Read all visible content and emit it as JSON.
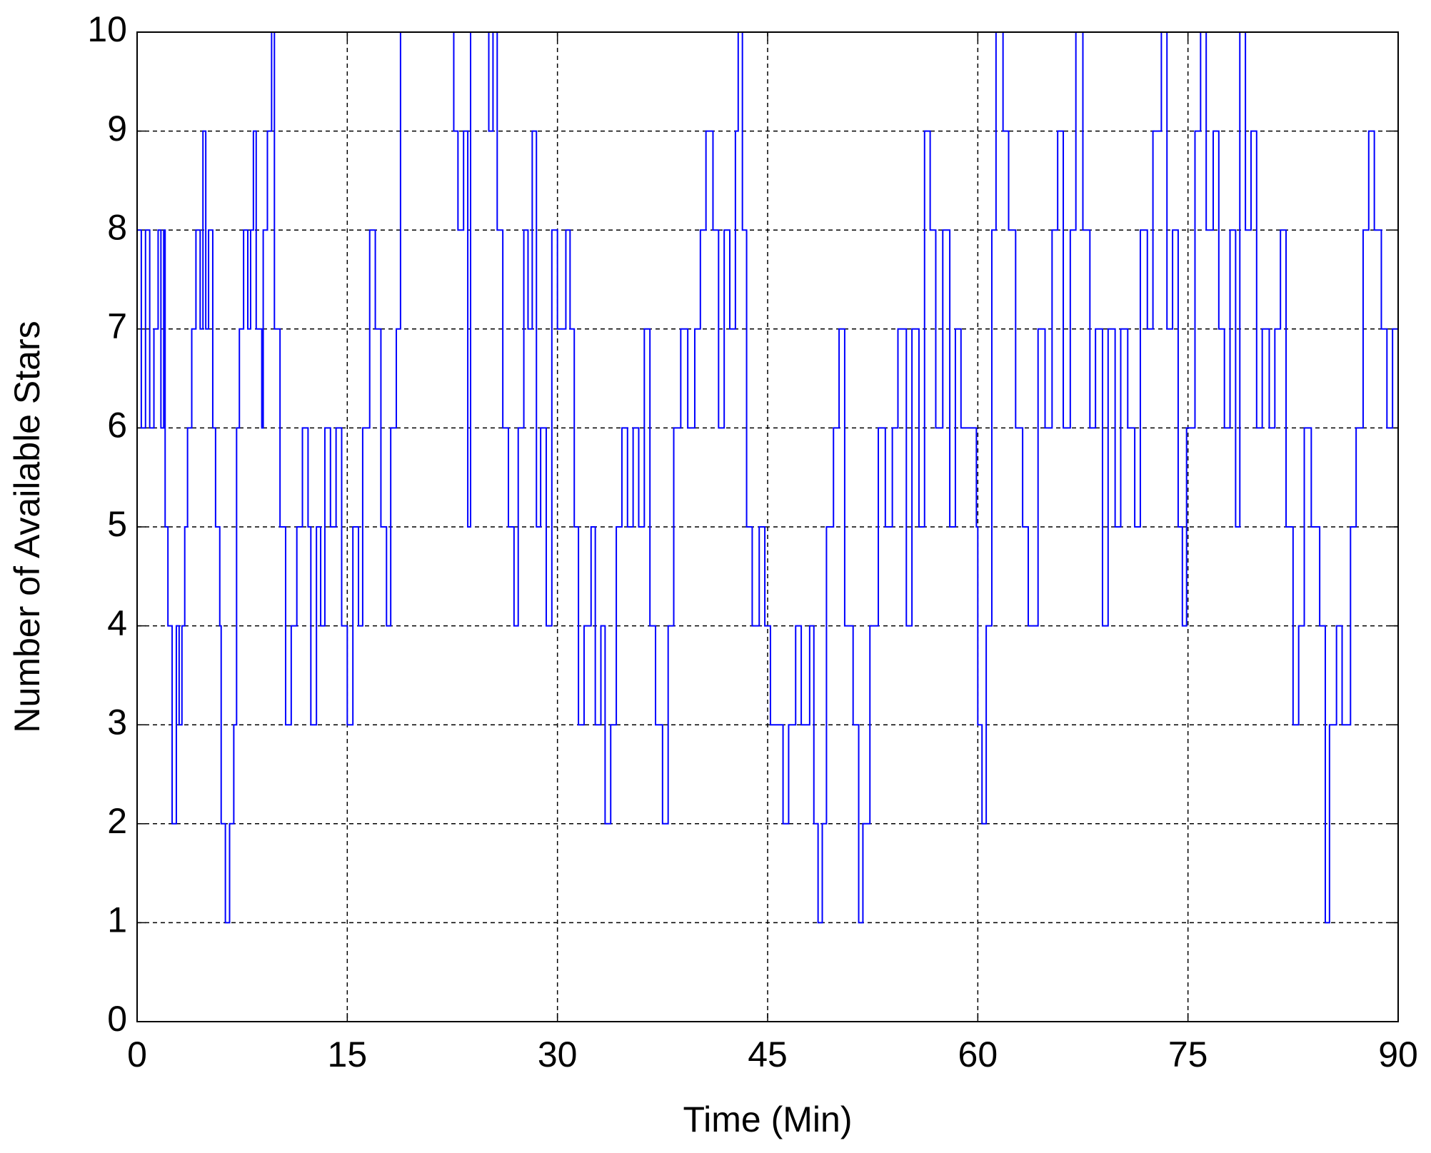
{
  "chart_data": {
    "type": "line",
    "step": "post",
    "xlabel": "Time (Min)",
    "ylabel": "Number of Available Stars",
    "xlim": [
      0,
      90
    ],
    "xticks": [
      0,
      15,
      30,
      45,
      60,
      75,
      90
    ],
    "ylim": [
      0,
      10
    ],
    "yticks": [
      0,
      1,
      2,
      3,
      4,
      5,
      6,
      7,
      8,
      9,
      10
    ],
    "grid": true,
    "series": [
      {
        "color": "#0000ff",
        "x": [
          0,
          0.3,
          0.6,
          0.9,
          1.2,
          1.5,
          1.7,
          1.9,
          2.0,
          2.2,
          2.5,
          2.8,
          3.0,
          3.2,
          3.4,
          3.6,
          3.9,
          4.2,
          4.5,
          4.7,
          4.9,
          5.1,
          5.4,
          5.6,
          5.9,
          6.0,
          6.3,
          6.6,
          6.9,
          7.1,
          7.3,
          7.6,
          7.9,
          8.1,
          8.3,
          8.5,
          8.9,
          9.0,
          9.3,
          9.6,
          9.8,
          10.2,
          10.6,
          11.0,
          11.4,
          11.8,
          12.2,
          12.4,
          12.8,
          13.1,
          13.4,
          13.8,
          14.2,
          14.6,
          15.0,
          15.4,
          15.8,
          16.1,
          16.6,
          17.0,
          17.4,
          17.8,
          18.1,
          18.5,
          18.8,
          22.6,
          22.9,
          23.3,
          23.6,
          23.8,
          25.1,
          25.4,
          25.7,
          26.1,
          26.5,
          26.9,
          27.2,
          27.6,
          27.9,
          28.2,
          28.5,
          28.8,
          29.2,
          29.6,
          30.0,
          30.6,
          30.9,
          31.2,
          31.5,
          31.9,
          32.4,
          32.7,
          33.1,
          33.4,
          33.8,
          34.2,
          34.6,
          35.0,
          35.4,
          35.8,
          36.2,
          36.6,
          37.0,
          37.5,
          37.9,
          38.3,
          38.8,
          39.3,
          39.8,
          40.2,
          40.6,
          41.1,
          41.5,
          41.9,
          42.3,
          42.7,
          42.9,
          43.2,
          43.5,
          43.9,
          44.4,
          44.8,
          45.2,
          46.1,
          46.5,
          47.0,
          47.4,
          48.0,
          48.3,
          48.6,
          48.9,
          49.2,
          49.7,
          50.1,
          50.5,
          51.1,
          51.5,
          51.8,
          52.3,
          52.9,
          53.4,
          53.9,
          54.3,
          54.9,
          55.3,
          55.8,
          56.2,
          56.6,
          57.0,
          57.5,
          58.0,
          58.4,
          58.8,
          59.9,
          60.0,
          60.3,
          60.6,
          61.0,
          61.3,
          61.8,
          62.2,
          62.7,
          63.2,
          63.6,
          64.3,
          64.8,
          65.3,
          65.7,
          66.1,
          66.6,
          67.0,
          67.5,
          68.0,
          68.4,
          68.9,
          69.3,
          69.8,
          70.2,
          70.7,
          71.2,
          71.6,
          72.1,
          72.5,
          73.1,
          73.5,
          73.9,
          74.3,
          74.6,
          74.9,
          75.5,
          75.9,
          76.3,
          76.8,
          77.2,
          77.6,
          78.0,
          78.4,
          78.7,
          79.1,
          79.5,
          79.9,
          80.3,
          80.8,
          81.2,
          81.6,
          82.0,
          82.5,
          82.9,
          83.3,
          83.8,
          84.4,
          84.8,
          85.1,
          85.6,
          86.0,
          86.6,
          87.0,
          87.5,
          87.9,
          88.3,
          88.8,
          89.2,
          89.6,
          90
        ],
        "values": [
          8,
          6,
          8,
          6,
          7,
          8,
          6,
          8,
          5,
          4,
          2,
          4,
          3,
          4,
          5,
          6,
          7,
          8,
          7,
          9,
          7,
          8,
          6,
          5,
          4,
          2,
          1,
          2,
          3,
          6,
          7,
          8,
          7,
          8,
          9,
          7,
          6,
          8,
          9,
          10,
          7,
          5,
          3,
          4,
          5,
          6,
          5,
          3,
          5,
          4,
          6,
          5,
          6,
          4,
          3,
          5,
          4,
          6,
          8,
          7,
          5,
          4,
          6,
          7,
          10,
          9,
          8,
          9,
          5,
          10,
          9,
          10,
          8,
          6,
          5,
          4,
          6,
          8,
          7,
          9,
          5,
          6,
          4,
          8,
          7,
          8,
          7,
          5,
          3,
          4,
          5,
          3,
          4,
          2,
          3,
          5,
          6,
          5,
          6,
          5,
          7,
          4,
          3,
          2,
          4,
          6,
          7,
          6,
          7,
          8,
          9,
          8,
          6,
          8,
          7,
          9,
          10,
          8,
          5,
          4,
          5,
          4,
          3,
          2,
          3,
          4,
          3,
          4,
          2,
          1,
          2,
          5,
          6,
          7,
          4,
          3,
          1,
          2,
          4,
          6,
          5,
          6,
          7,
          4,
          7,
          5,
          9,
          8,
          6,
          8,
          5,
          7,
          6,
          5,
          3,
          2,
          4,
          8,
          10,
          9,
          8,
          6,
          5,
          4,
          7,
          6,
          8,
          9,
          6,
          8,
          10,
          8,
          6,
          7,
          4,
          7,
          5,
          7,
          6,
          5,
          8,
          7,
          9,
          10,
          7,
          8,
          5,
          4,
          6,
          9,
          10,
          8,
          9,
          7,
          6,
          8,
          5,
          10,
          8,
          9,
          6,
          7,
          6,
          7,
          8,
          5,
          3,
          4,
          6,
          5,
          4,
          1,
          3,
          4,
          3,
          5,
          6,
          8,
          9,
          8,
          7,
          6,
          7,
          7
        ]
      }
    ]
  }
}
